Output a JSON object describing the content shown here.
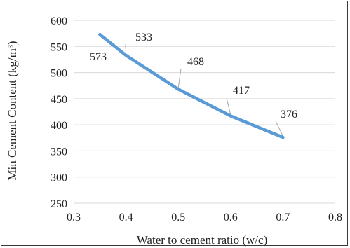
{
  "chart_data": {
    "type": "line",
    "title": "",
    "xlabel": "Water to cement ratio (w/c)",
    "ylabel": "Min Cement Content (kg/m³)",
    "xlim": [
      0.3,
      0.8
    ],
    "ylim": [
      250,
      600
    ],
    "xticks": [
      "0.3",
      "0.4",
      "0.5",
      "0.6",
      "0.7",
      "0.8"
    ],
    "yticks": [
      "250",
      "300",
      "350",
      "400",
      "450",
      "500",
      "550",
      "600"
    ],
    "grid": true,
    "legend": "none",
    "series": [
      {
        "color": "#5b9bd5",
        "x": [
          0.35,
          0.4,
          0.5,
          0.6,
          0.7
        ],
        "y": [
          573,
          533,
          468,
          417,
          376
        ],
        "labels": [
          "573",
          "533",
          "468",
          "417",
          "376"
        ]
      }
    ]
  }
}
